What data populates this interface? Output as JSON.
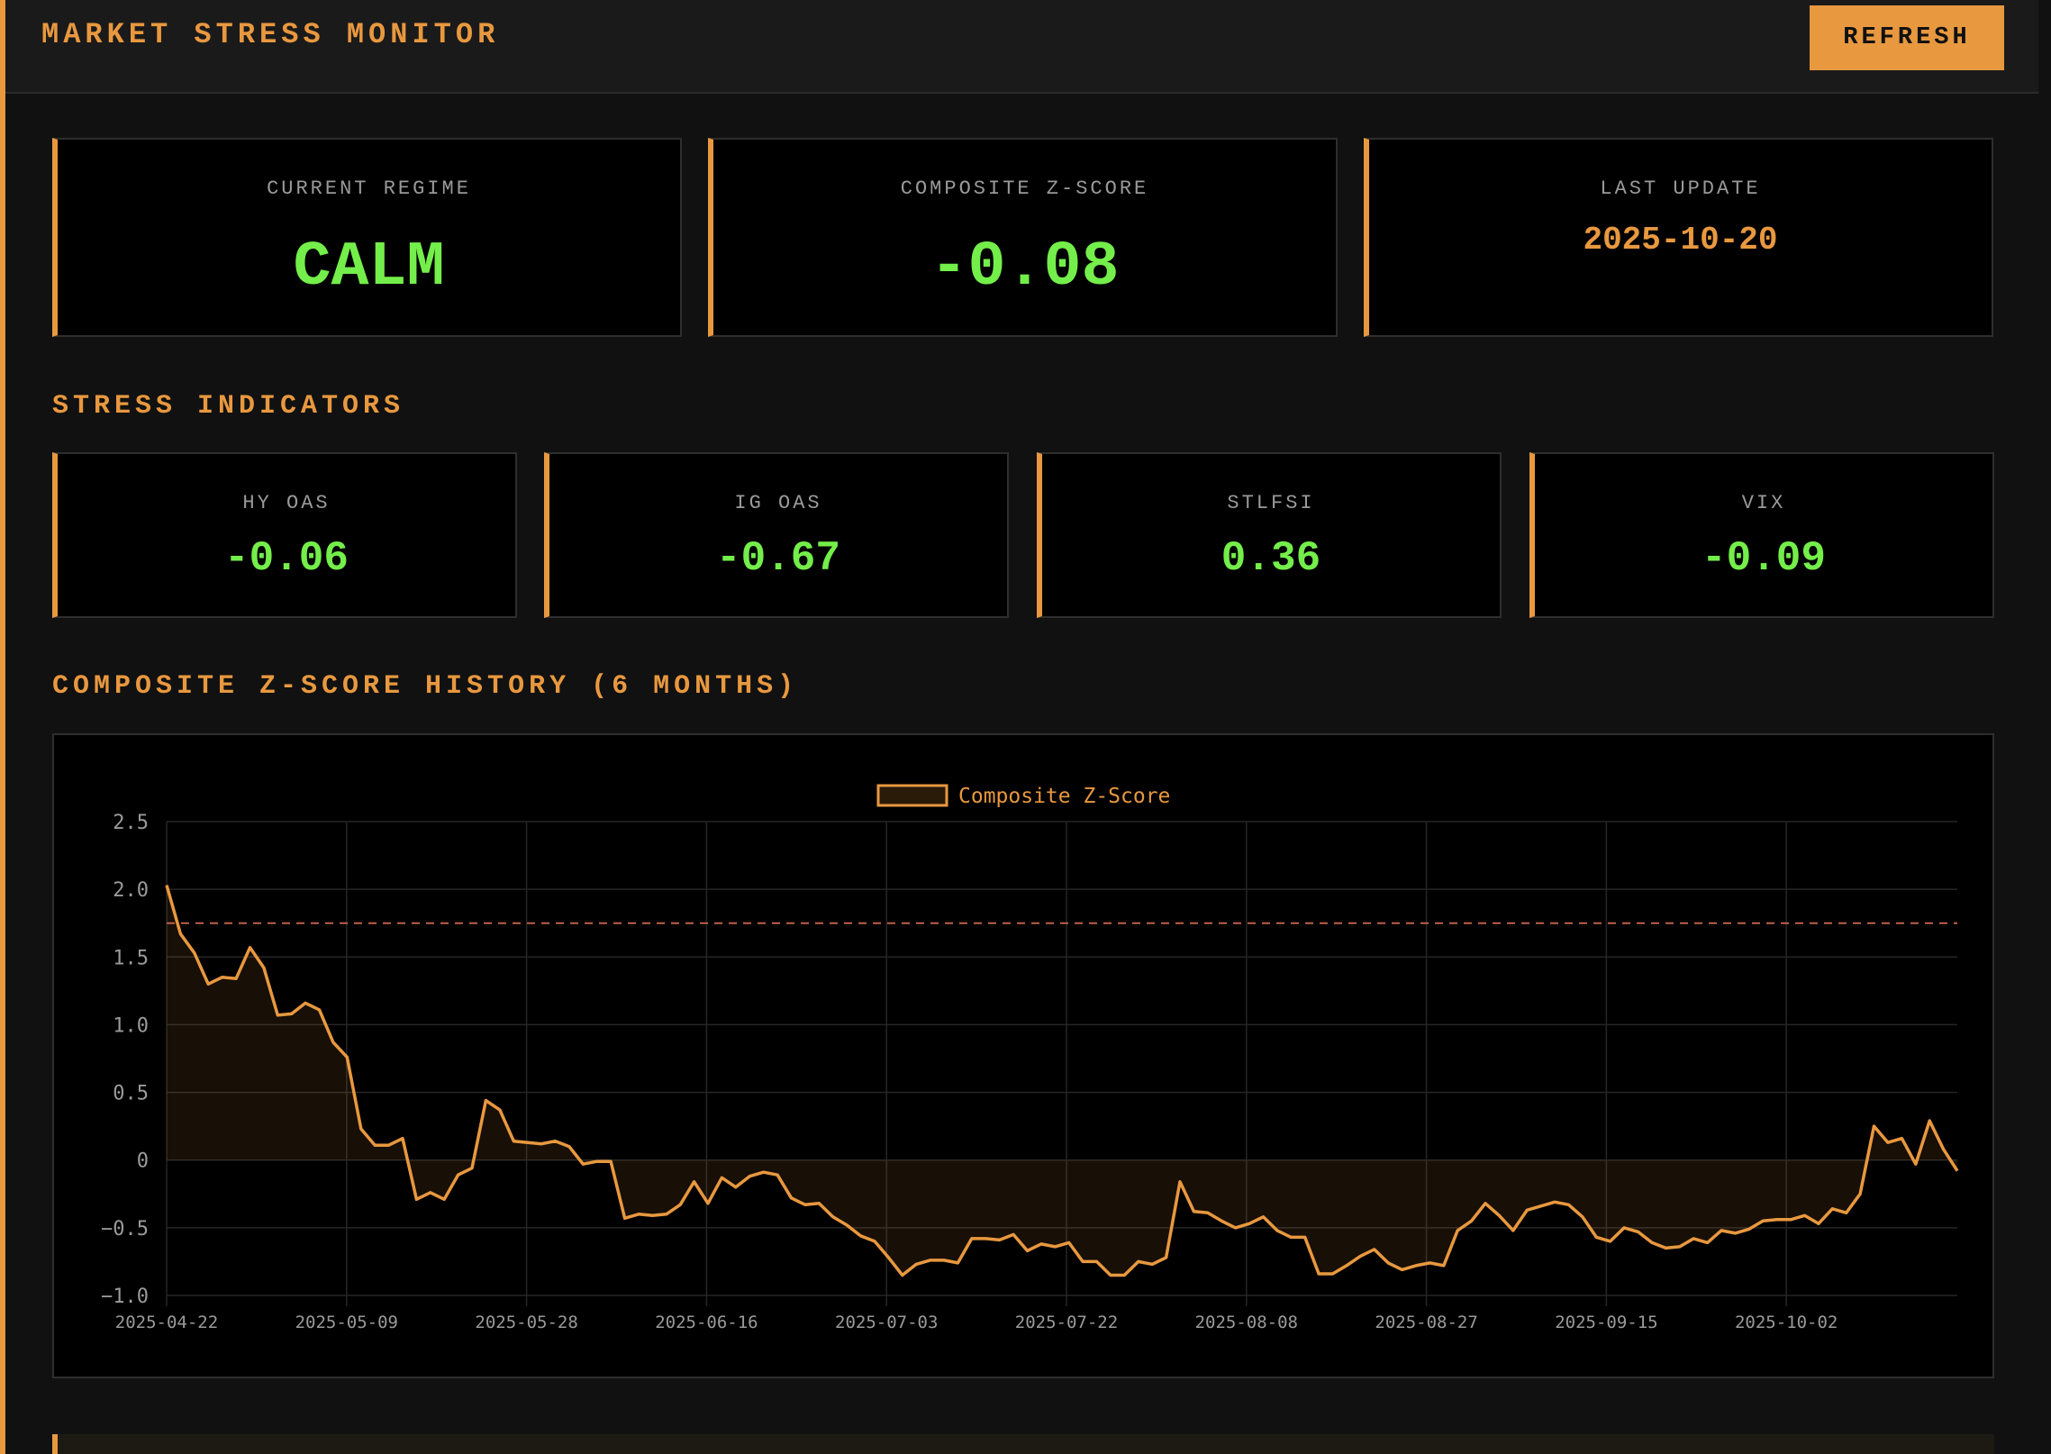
{
  "header": {
    "title": "MARKET STRESS MONITOR",
    "refresh_label": "REFRESH"
  },
  "summary": {
    "regime": {
      "label": "CURRENT REGIME",
      "value": "CALM"
    },
    "composite": {
      "label": "COMPOSITE Z-SCORE",
      "value": "-0.08"
    },
    "last_update": {
      "label": "LAST UPDATE",
      "value": "2025-10-20"
    }
  },
  "indicators": {
    "title": "STRESS INDICATORS",
    "items": [
      {
        "label": "HY OAS",
        "value": "-0.06"
      },
      {
        "label": "IG OAS",
        "value": "-0.67"
      },
      {
        "label": "STLFSI",
        "value": "0.36"
      },
      {
        "label": "VIX",
        "value": "-0.09"
      }
    ]
  },
  "history": {
    "title": "COMPOSITE Z-SCORE HISTORY (6 MONTHS)"
  },
  "colors": {
    "accent": "#e8983f",
    "positive": "#74ee4a",
    "threshold": "#c0604a"
  },
  "chart_data": {
    "type": "line",
    "legend": "Composite Z-Score",
    "legend_position": "top-center",
    "grid": true,
    "ylim": [
      -1.0,
      2.5
    ],
    "yticks": [
      2.5,
      2.0,
      1.5,
      1.0,
      0.5,
      0,
      -0.5,
      -1.0
    ],
    "ytick_labels": [
      "2.5",
      "2.0",
      "1.5",
      "1.0",
      "0.5",
      "0",
      "−0.5",
      "−1.0"
    ],
    "xticks": [
      "2025-04-22",
      "2025-05-09",
      "2025-05-28",
      "2025-06-16",
      "2025-07-03",
      "2025-07-22",
      "2025-08-08",
      "2025-08-27",
      "2025-09-15",
      "2025-10-02"
    ],
    "threshold": 1.75,
    "fill_to_zero": true,
    "series": [
      {
        "name": "Composite Z-Score",
        "values": [
          2.03,
          1.67,
          1.53,
          1.3,
          1.35,
          1.34,
          1.57,
          1.42,
          1.07,
          1.08,
          1.16,
          1.11,
          0.87,
          0.76,
          0.23,
          0.11,
          0.11,
          0.16,
          -0.29,
          -0.24,
          -0.29,
          -0.11,
          -0.06,
          0.44,
          0.37,
          0.14,
          0.13,
          0.12,
          0.14,
          0.1,
          -0.03,
          -0.01,
          -0.01,
          -0.43,
          -0.4,
          -0.41,
          -0.4,
          -0.33,
          -0.16,
          -0.32,
          -0.13,
          -0.2,
          -0.12,
          -0.09,
          -0.11,
          -0.28,
          -0.33,
          -0.32,
          -0.42,
          -0.48,
          -0.56,
          -0.6,
          -0.72,
          -0.85,
          -0.77,
          -0.74,
          -0.74,
          -0.76,
          -0.58,
          -0.58,
          -0.59,
          -0.55,
          -0.67,
          -0.62,
          -0.64,
          -0.61,
          -0.75,
          -0.75,
          -0.85,
          -0.85,
          -0.75,
          -0.77,
          -0.72,
          -0.16,
          -0.38,
          -0.39,
          -0.45,
          -0.5,
          -0.47,
          -0.42,
          -0.52,
          -0.57,
          -0.57,
          -0.84,
          -0.84,
          -0.78,
          -0.71,
          -0.66,
          -0.76,
          -0.81,
          -0.78,
          -0.76,
          -0.78,
          -0.52,
          -0.45,
          -0.32,
          -0.41,
          -0.52,
          -0.37,
          -0.34,
          -0.31,
          -0.33,
          -0.42,
          -0.57,
          -0.6,
          -0.5,
          -0.53,
          -0.61,
          -0.65,
          -0.64,
          -0.58,
          -0.61,
          -0.52,
          -0.54,
          -0.51,
          -0.45,
          -0.44,
          -0.44,
          -0.41,
          -0.47,
          -0.36,
          -0.39,
          -0.25,
          0.25,
          0.13,
          0.16,
          -0.03,
          0.29,
          0.08,
          -0.08
        ]
      }
    ]
  }
}
